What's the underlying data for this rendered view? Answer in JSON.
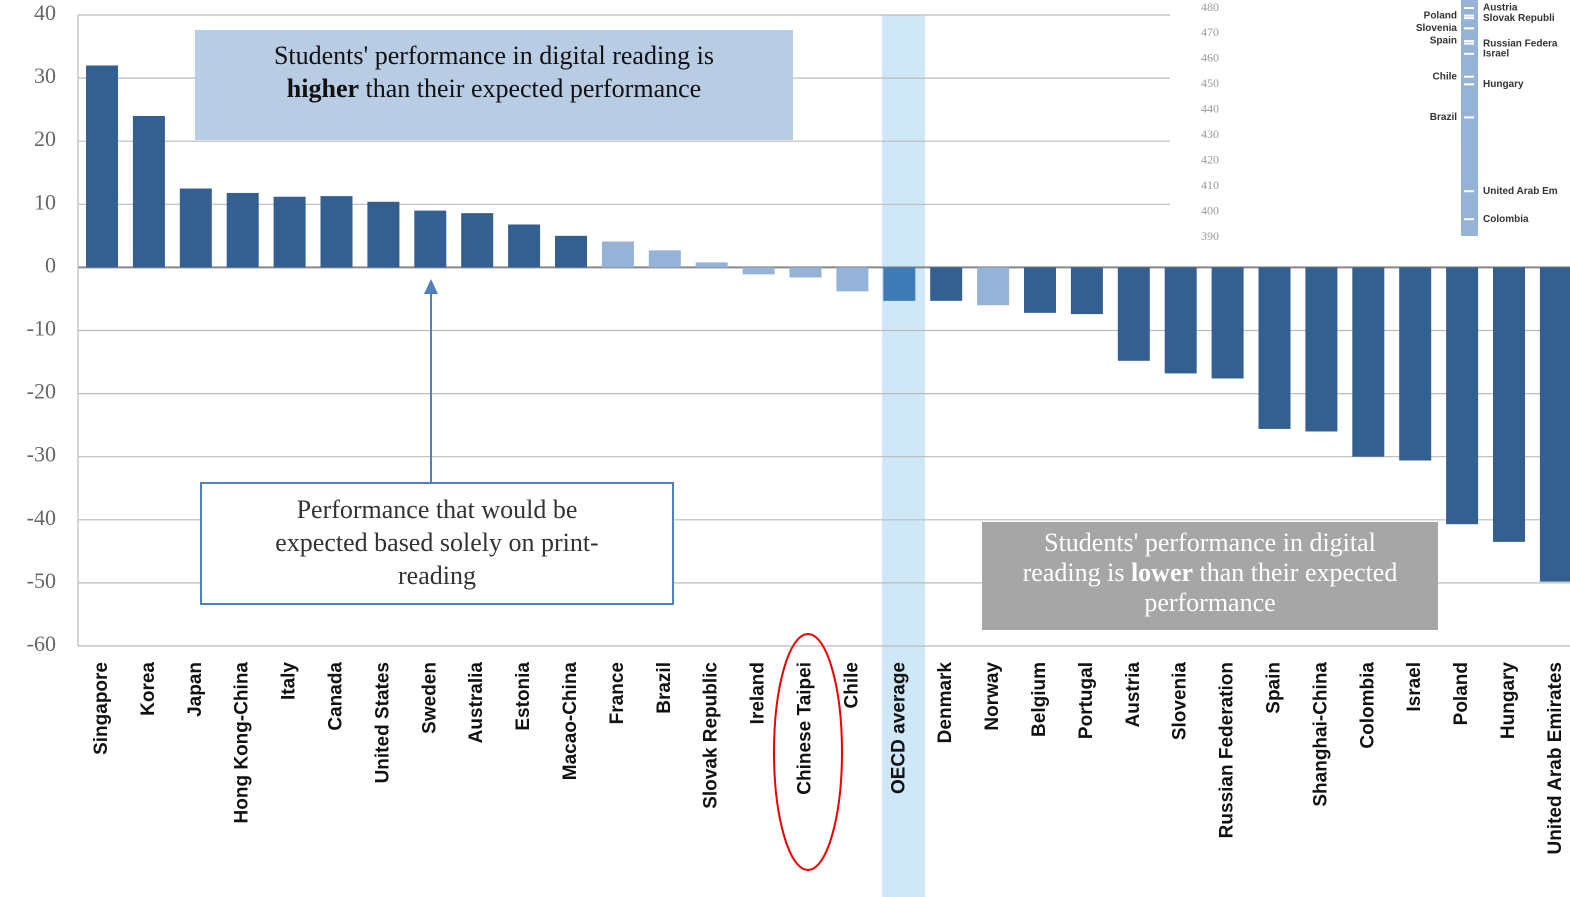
{
  "chart_data": {
    "type": "bar",
    "categories": [
      "Singapore",
      "Korea",
      "Japan",
      "Hong Kong-China",
      "Italy",
      "Canada",
      "United States",
      "Sweden",
      "Australia",
      "Estonia",
      "Macao-China",
      "France",
      "Brazil",
      "Slovak Republic",
      "Ireland",
      "Chinese Taipei",
      "Chile",
      "OECD average",
      "Denmark",
      "Norway",
      "Belgium",
      "Portugal",
      "Austria",
      "Slovenia",
      "Russian Federation",
      "Spain",
      "Shanghai-China",
      "Colombia",
      "Israel",
      "Poland",
      "Hungary",
      "United Arab Emirates"
    ],
    "values": [
      32,
      24,
      12.5,
      11.8,
      11.2,
      11.3,
      10.4,
      9,
      8.6,
      6.8,
      5,
      4.1,
      2.7,
      0.8,
      -1.1,
      -1.6,
      -3.8,
      -5.3,
      -5.3,
      -6,
      -7.2,
      -7.4,
      -14.8,
      -16.8,
      -17.6,
      -25.6,
      -26,
      -30,
      -30.6,
      -40.7,
      -43.5,
      -49.8
    ],
    "colors": [
      "#335f91",
      "#335f91",
      "#335f91",
      "#335f91",
      "#335f91",
      "#335f91",
      "#335f91",
      "#335f91",
      "#335f91",
      "#335f91",
      "#335f91",
      "#95b3d7",
      "#95b3d7",
      "#95b3d7",
      "#95b3d7",
      "#95b3d7",
      "#95b3d7",
      "#3f7bb6",
      "#335f91",
      "#95b3d7",
      "#335f91",
      "#335f91",
      "#335f91",
      "#335f91",
      "#335f91",
      "#335f91",
      "#335f91",
      "#335f91",
      "#335f91",
      "#335f91",
      "#335f91",
      "#335f91"
    ],
    "ylim": [
      -60,
      40
    ],
    "yticks": [
      -60,
      -50,
      -40,
      -30,
      -20,
      -10,
      0,
      10,
      20,
      30,
      40
    ],
    "grid": true,
    "annotations": [
      {
        "lines": [
          [
            {
              "text": "Students' performance in digital reading is"
            }
          ],
          [
            {
              "text": "higher",
              "bold": true
            },
            {
              "text": " than their expected performance"
            }
          ]
        ]
      },
      {
        "lines": [
          [
            {
              "text": "Performance that would be"
            }
          ],
          [
            {
              "text": "expected based solely on print-"
            }
          ],
          [
            {
              "text": "reading"
            }
          ]
        ]
      },
      {
        "lines": [
          [
            {
              "text": "Students' performance in digital"
            }
          ],
          [
            {
              "text": "reading is "
            },
            {
              "text": "lower",
              "bold": true
            },
            {
              "text": " than  their expected"
            }
          ],
          [
            {
              "text": "performance"
            }
          ]
        ]
      }
    ],
    "inset": {
      "ylim": [
        390,
        480
      ],
      "yticks": [
        390,
        400,
        410,
        420,
        430,
        440,
        450,
        460,
        470,
        480
      ],
      "left": [
        {
          "text": "Poland",
          "value": 477
        },
        {
          "text": "Slovenia",
          "value": 472
        },
        {
          "text": "Spain",
          "value": 467
        },
        {
          "text": "Chile",
          "value": 453
        },
        {
          "text": "Brazil",
          "value": 437
        }
      ],
      "right": [
        {
          "text": "Austria",
          "value": 480
        },
        {
          "text": "Slovak Republi",
          "value": 476
        },
        {
          "text": "Russian Federa",
          "value": 466
        },
        {
          "text": "Israel",
          "value": 462
        },
        {
          "text": "Hungary",
          "value": 450
        },
        {
          "text": "United Arab Em",
          "value": 408
        },
        {
          "text": "Colombia",
          "value": 397
        }
      ]
    }
  }
}
